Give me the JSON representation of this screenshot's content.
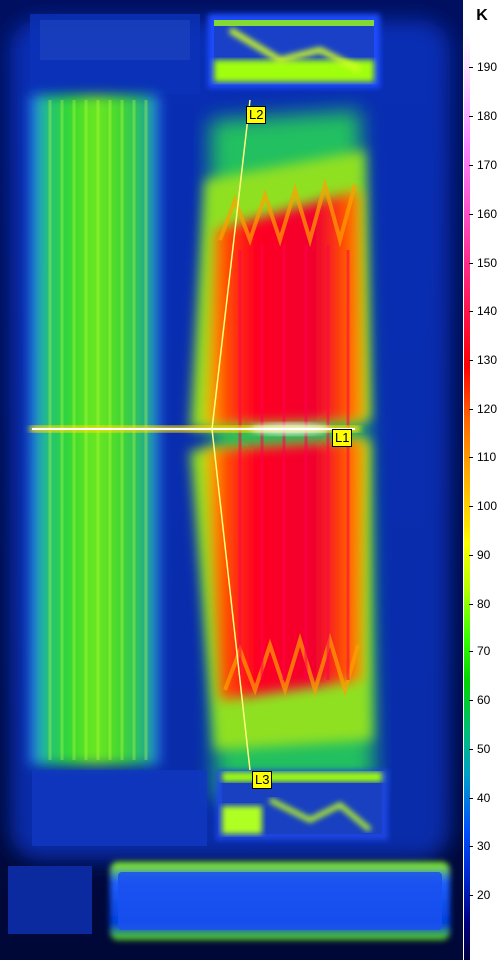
{
  "scale": {
    "unit": "K",
    "ticks": [
      "190",
      "180",
      "170",
      "160",
      "150",
      "140",
      "130",
      "120",
      "110",
      "100",
      "90",
      "80",
      "70",
      "60",
      "50",
      "40",
      "30",
      "20"
    ]
  },
  "markers": {
    "l1": "L1",
    "l2": "L2",
    "l3": "L3"
  },
  "colors": {
    "background": "#000a60",
    "line": "#ffff80",
    "label_bg": "#ffff00"
  }
}
